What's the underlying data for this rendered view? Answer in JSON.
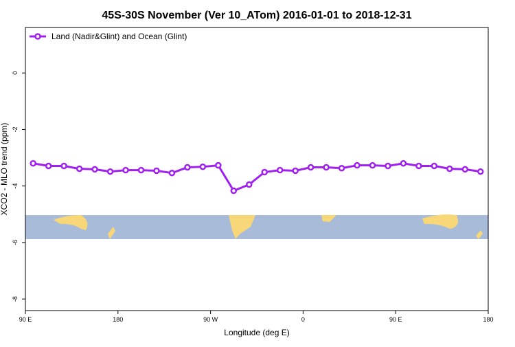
{
  "chart_data": {
    "type": "line",
    "title": "45S-30S November (Ver 10_ATom)   2016-01-01 to 2018-12-31",
    "xlabel": "Longitude (deg E)",
    "ylabel": "XCO2 - MLO trend (ppm)",
    "x": [
      97.5,
      112.5,
      127.5,
      142.5,
      157.5,
      172.5,
      187.5,
      202.5,
      217.5,
      232.5,
      247.5,
      262.5,
      277.5,
      292.5,
      307.5,
      322.5,
      337.5,
      352.5,
      367.5,
      382.5,
      397.5,
      412.5,
      427.5,
      442.5,
      457.5,
      472.5,
      487.5,
      502.5,
      517.5,
      532.5
    ],
    "series": [
      {
        "name": "Land (Nadir&Glint) and Ocean (Glint)",
        "color": "#a020f0",
        "values": [
          -3.2,
          -3.29,
          -3.29,
          -3.39,
          -3.41,
          -3.49,
          -3.44,
          -3.44,
          -3.46,
          -3.54,
          -3.34,
          -3.32,
          -3.27,
          -4.17,
          -3.95,
          -3.51,
          -3.44,
          -3.46,
          -3.34,
          -3.34,
          -3.37,
          -3.27,
          -3.27,
          -3.29,
          -3.2,
          -3.29,
          -3.29,
          -3.39,
          -3.41,
          -3.49
        ]
      }
    ],
    "xlim": [
      90,
      540
    ],
    "xticks": [
      {
        "value": 90,
        "label": "90 E"
      },
      180,
      {
        "value": 270,
        "label": "90 W"
      },
      {
        "value": 360,
        "label": "0"
      },
      {
        "value": 450,
        "label": "90 E"
      },
      {
        "value": 540,
        "label": "180"
      }
    ],
    "ylim": [
      -8.41,
      1.61
    ],
    "yticks": [
      0,
      -2,
      -4,
      -6,
      -8
    ],
    "legend": "top-left"
  }
}
